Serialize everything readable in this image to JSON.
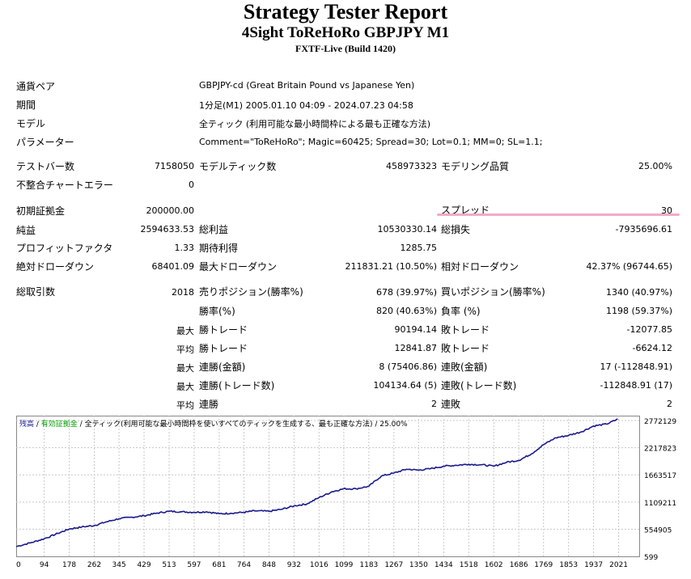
{
  "header": {
    "title": "Strategy Tester Report",
    "subtitle": "4Sight ToReHoRo GBPJPY M1",
    "server": "FXTF-Live (Build 1420)"
  },
  "info": {
    "pair_label": "通貨ペア",
    "pair_value": "GBPJPY-cd (Great Britain Pound vs Japanese Yen)",
    "period_label": "期間",
    "period_value": "1分足(M1) 2005.01.10 04:09 - 2024.07.23 04:58",
    "model_label": "モデル",
    "model_value": "全ティック (利用可能な最小時間枠による最も正確な方法)",
    "params_label": "パラメーター",
    "params_value": "Comment=\"ToReHoRo\"; Magic=60425; Spread=30; Lot=0.1; MM=0; SL=1.1;"
  },
  "stats": {
    "bars_label": "テストバー数",
    "bars_value": "7158050",
    "ticks_label": "モデルティック数",
    "ticks_value": "458973323",
    "quality_label": "モデリング品質",
    "quality_value": "25.00%",
    "errors_label": "不整合チャートエラー",
    "errors_value": "0",
    "deposit_label": "初期証拠金",
    "deposit_value": "200000.00",
    "spread_label": "スプレッド",
    "spread_value": "30",
    "net_label": "純益",
    "net_value": "2594633.53",
    "gross_profit_label": "総利益",
    "gross_profit_value": "10530330.14",
    "gross_loss_label": "総損失",
    "gross_loss_value": "-7935696.61",
    "pf_label": "プロフィットファクタ",
    "pf_value": "1.33",
    "expected_label": "期待利得",
    "expected_value": "1285.75",
    "abs_dd_label": "絶対ドローダウン",
    "abs_dd_value": "68401.09",
    "max_dd_label": "最大ドローダウン",
    "max_dd_value": "211831.21 (10.50%)",
    "rel_dd_label": "相対ドローダウン",
    "rel_dd_value": "42.37% (96744.65)",
    "total_trades_label": "総取引数",
    "total_trades_value": "2018",
    "short_label": "売りポジション(勝率%)",
    "short_value": "678 (39.97%)",
    "long_label": "買いポジション(勝率%)",
    "long_value": "1340 (40.97%)",
    "win_label": "勝率(%)",
    "win_value": "820 (40.63%)",
    "loss_label": "負率 (%)",
    "loss_value": "1198 (59.37%)",
    "max_label": "最大",
    "max_win_label": "勝トレード",
    "max_win_value": "90194.14",
    "max_loss_label": "敗トレード",
    "max_loss_value": "-12077.85",
    "avg_label": "平均",
    "avg_win_label": "勝トレード",
    "avg_win_value": "12841.87",
    "avg_loss_label": "敗トレード",
    "avg_loss_value": "-6624.12",
    "max2_label": "最大",
    "cons_wins_money_label": "連勝(金額)",
    "cons_wins_money_value": "8 (75406.86)",
    "cons_losses_money_label": "連敗(金額)",
    "cons_losses_money_value": "17 (-112848.91)",
    "max3_label": "最大",
    "cons_profit_label": "連勝(トレード数)",
    "cons_profit_value": "104134.64 (5)",
    "cons_loss_label": "連敗(トレード数)",
    "cons_loss_value": "-112848.91 (17)",
    "avg2_label": "平均",
    "avg_cons_win_label": "連勝",
    "avg_cons_win_value": "2",
    "avg_cons_loss_label": "連敗",
    "avg_cons_loss_value": "2"
  },
  "chart_legend": {
    "balance": "残高",
    "sep1": " / ",
    "equity": "有効証拠金",
    "sep2": " / ",
    "model": "全ティック(利用可能な最小時間枠を使いすべてのティックを生成する、最も正確な方法)",
    "sep3": " / ",
    "quality": "25.00%"
  },
  "colors": {
    "balance_line": "#1a1a8c",
    "equity_text": "#00a000",
    "grid": "#c8c8c8",
    "spread_highlight": "#f3a9c8"
  },
  "chart_data": {
    "type": "line",
    "title": "",
    "xlabel": "",
    "ylabel": "",
    "x_ticks": [
      "0",
      "94",
      "178",
      "262",
      "345",
      "429",
      "513",
      "597",
      "681",
      "764",
      "848",
      "932",
      "1016",
      "1099",
      "1183",
      "1267",
      "1350",
      "1434",
      "1518",
      "1602",
      "1686",
      "1769",
      "1853",
      "1937",
      "2021"
    ],
    "y_ticks": [
      "599",
      "554905",
      "1109211",
      "1663517",
      "2217823",
      "2772129"
    ],
    "xlim": [
      0,
      2090
    ],
    "ylim": [
      599,
      2872000
    ],
    "series": [
      {
        "x": [
          0,
          50,
          94,
          140,
          178,
          220,
          262,
          300,
          345,
          390,
          429,
          470,
          513,
          555,
          597,
          640,
          681,
          720,
          764,
          800,
          848,
          890,
          932,
          975,
          1016,
          1060,
          1099,
          1140,
          1183,
          1225,
          1267,
          1310,
          1350,
          1390,
          1434,
          1475,
          1518,
          1560,
          1602,
          1645,
          1686,
          1728,
          1769,
          1810,
          1853,
          1895,
          1937,
          1980,
          2018
        ],
        "y": [
          200000,
          280000,
          360000,
          470000,
          560000,
          600000,
          630000,
          700000,
          770000,
          800000,
          830000,
          880000,
          920000,
          910000,
          900000,
          910000,
          870000,
          880000,
          900000,
          930000,
          920000,
          960000,
          1030000,
          1070000,
          1200000,
          1320000,
          1380000,
          1380000,
          1430000,
          1640000,
          1700000,
          1780000,
          1760000,
          1790000,
          1840000,
          1860000,
          1880000,
          1870000,
          1840000,
          1920000,
          1960000,
          2090000,
          2280000,
          2420000,
          2470000,
          2540000,
          2660000,
          2700000,
          2800000
        ]
      }
    ]
  }
}
